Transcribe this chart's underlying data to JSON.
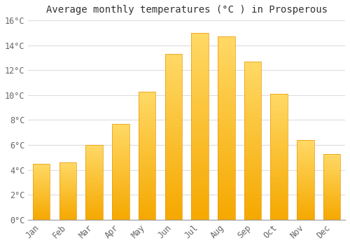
{
  "months": [
    "Jan",
    "Feb",
    "Mar",
    "Apr",
    "May",
    "Jun",
    "Jul",
    "Aug",
    "Sep",
    "Oct",
    "Nov",
    "Dec"
  ],
  "values": [
    4.5,
    4.6,
    6.0,
    7.7,
    10.3,
    13.3,
    15.0,
    14.7,
    12.7,
    10.1,
    6.4,
    5.3
  ],
  "bar_color_bottom": "#F5A800",
  "bar_color_top": "#FFD966",
  "title": "Average monthly temperatures (°C ) in Prosperous",
  "ylim": [
    0,
    16
  ],
  "ytick_step": 2,
  "background_color": "#FFFFFF",
  "plot_bg_color": "#FFFFFF",
  "grid_color": "#DDDDDD",
  "title_fontsize": 10,
  "tick_fontsize": 8.5,
  "bar_width": 0.65,
  "bar_edge_color": "#E8980A",
  "bar_edge_width": 0.5
}
